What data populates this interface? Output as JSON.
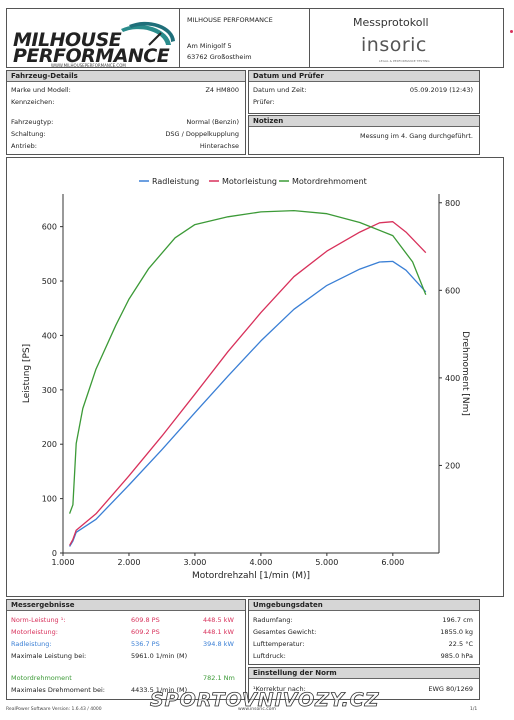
{
  "header": {
    "logo": {
      "line1": "MILHOUSE",
      "line2": "PERFORMANCE",
      "url": "WWW.MILHOUSEPERFORMANCE.COM"
    },
    "company": "MILHOUSE PERFORMANCE",
    "street": "Am Minigolf 5",
    "city": "63762 Großostheim",
    "doc_title": "Messprotokoll",
    "brand": "insoric",
    "brand_tagline": "LEGAL & PERFORMANCE TESTING"
  },
  "vehicle": {
    "title": "Fahrzeug-Details",
    "make_label": "Marke und Modell:",
    "make_value": "Z4 HM800",
    "plate_label": "Kennzeichen:",
    "plate_value": "",
    "type_label": "Fahrzeugtyp:",
    "type_value": "Normal (Benzin)",
    "gear_label": "Schaltung:",
    "gear_value": "DSG / Doppelkupplung",
    "drive_label": "Antrieb:",
    "drive_value": "Hinterachse"
  },
  "date_tester": {
    "title": "Datum und Prüfer",
    "date_label": "Datum und Zeit:",
    "date_value": "05.09.2019 (12:43)",
    "tester_label": "Prüfer:",
    "tester_value": ""
  },
  "notes": {
    "title": "Notizen",
    "text": "Messung im 4. Gang durchgeführt."
  },
  "chart_data": {
    "type": "line",
    "xlabel": "Motordrehzahl [1/min (M)]",
    "ylabel": "Leistung [PS]",
    "y2label": "Drehmoment [Nm]",
    "xlim": [
      1000,
      6700
    ],
    "ylim": [
      0,
      660
    ],
    "y2lim": [
      0,
      820
    ],
    "x_ticks": [
      "1.000",
      "2.000",
      "3.000",
      "4.000",
      "5.000",
      "6.000"
    ],
    "y_ticks": [
      0,
      100,
      200,
      300,
      400,
      500,
      600
    ],
    "y2_ticks": [
      200,
      400,
      600,
      800
    ],
    "legend": "top-center",
    "grid": false,
    "series": [
      {
        "name": "Radleistung",
        "axis": "left",
        "color": "#3a7fd5",
        "x": [
          1100,
          1150,
          1200,
          1500,
          2000,
          2500,
          3000,
          3500,
          4000,
          4500,
          5000,
          5500,
          5800,
          6000,
          6200,
          6500
        ],
        "y": [
          12,
          22,
          38,
          62,
          125,
          190,
          258,
          325,
          390,
          448,
          492,
          522,
          535,
          536,
          520,
          480
        ]
      },
      {
        "name": "Motorleistung",
        "axis": "left",
        "color": "#d8315b",
        "x": [
          1100,
          1150,
          1200,
          1500,
          2000,
          2500,
          3000,
          3500,
          4000,
          4500,
          5000,
          5500,
          5800,
          6000,
          6200,
          6500
        ],
        "y": [
          14,
          25,
          42,
          72,
          142,
          215,
          292,
          370,
          442,
          508,
          555,
          590,
          607,
          609,
          590,
          552
        ]
      },
      {
        "name": "Motordrehmoment",
        "axis": "right",
        "color": "#3c9a37",
        "x": [
          1100,
          1150,
          1200,
          1300,
          1500,
          1800,
          2000,
          2300,
          2700,
          3000,
          3500,
          4000,
          4500,
          5000,
          5500,
          6000,
          6300,
          6500
        ],
        "y": [
          90,
          110,
          250,
          330,
          420,
          520,
          580,
          650,
          720,
          750,
          768,
          779,
          782,
          775,
          755,
          725,
          665,
          590
        ]
      }
    ]
  },
  "results": {
    "title": "Messergebnisse",
    "norm_label": "Norm-Leistung ¹:",
    "norm_ps": "609.8 PS",
    "norm_kw": "448.5 kW",
    "motor_label": "Motorleistung:",
    "motor_ps": "609.2 PS",
    "motor_kw": "448.1 kW",
    "wheel_label": "Radleistung:",
    "wheel_ps": "536.7 PS",
    "wheel_kw": "394.8 kW",
    "max_power_label": "Maximale Leistung bei:",
    "max_power_value": "5961.0 1/min (M)",
    "torque_label": "Motordrehmoment",
    "torque_value": "782.1 Nm",
    "max_torque_label": "Maximales Drehmoment bei:",
    "max_torque_value": "4433.5 1/min (M)"
  },
  "environment": {
    "title": "Umgebungsdaten",
    "displacement_label": "Radumfang:",
    "displacement_value": "196.7 cm",
    "weight_label": "Gesamtes Gewicht:",
    "weight_value": "1855.0 kg",
    "temp_label": "Lufttemperatur:",
    "temp_value": "22.5 °C",
    "pressure_label": "Luftdruck:",
    "pressure_value": "985.0 hPa"
  },
  "norm": {
    "title": "Einstellung der Norm",
    "label": "¹Korrektur nach:",
    "value": "EWG 80/1269"
  },
  "footer": {
    "software": "RealPower Software Version: 1.6.43 / 4000",
    "site": "www.insoric.com",
    "page": "1/1",
    "watermark": "SPORTOVNIVOZY.CZ"
  },
  "colors": {
    "header_gray": "#d6d6d6",
    "accent_red": "#d8315b",
    "accent_blue": "#3a7fd5",
    "accent_green": "#3c9a37"
  }
}
